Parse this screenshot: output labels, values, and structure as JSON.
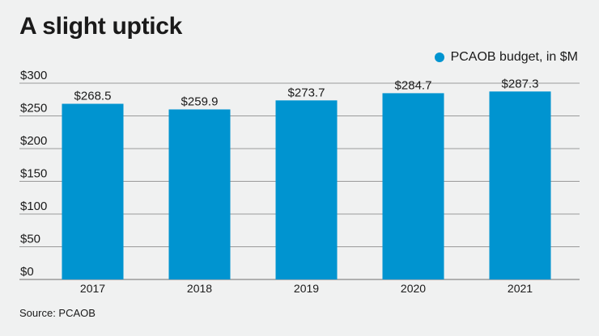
{
  "chart_data": {
    "type": "bar",
    "title": "A slight uptick",
    "categories": [
      "2017",
      "2018",
      "2019",
      "2020",
      "2021"
    ],
    "series": [
      {
        "name": "PCAOB budget, in $M",
        "values": [
          268.5,
          259.9,
          273.7,
          284.7,
          287.3
        ]
      }
    ],
    "data_labels": [
      "$268.5",
      "$259.9",
      "$273.7",
      "$284.7",
      "$287.3"
    ],
    "yticks": [
      0,
      50,
      100,
      150,
      200,
      250,
      300
    ],
    "ytick_labels": [
      "$0",
      "$50",
      "$100",
      "$150",
      "$200",
      "$250",
      "$300"
    ],
    "ylim": [
      0,
      300
    ],
    "grid": true,
    "legend_position": "top-right",
    "source": "Source: PCAOB",
    "colors": {
      "bar": "#0094d0",
      "grid": "#9a9a9a",
      "background": "#f0f1f1"
    }
  }
}
